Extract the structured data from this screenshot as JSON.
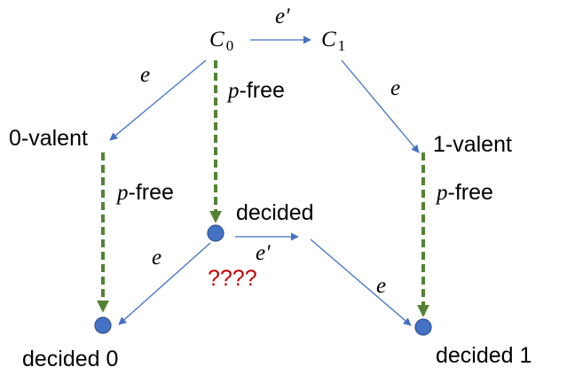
{
  "nodes": {
    "c0": {
      "symbol": "C",
      "subscript": "0"
    },
    "c1": {
      "symbol": "C",
      "subscript": "1"
    },
    "zero_valent": "0-valent",
    "one_valent": "1-valent",
    "decided": "decided",
    "decided_0": "decided 0",
    "decided_1": "decided 1"
  },
  "edges": {
    "e": "e",
    "e_prime": "e′",
    "p_free_var": "p",
    "p_free_suffix": "-free"
  },
  "unknown_marker": "????",
  "colors": {
    "blue_edge": "#4472c4",
    "green_edge": "#548235",
    "node_fill": "#4472c4",
    "question_red": "#c00000"
  }
}
